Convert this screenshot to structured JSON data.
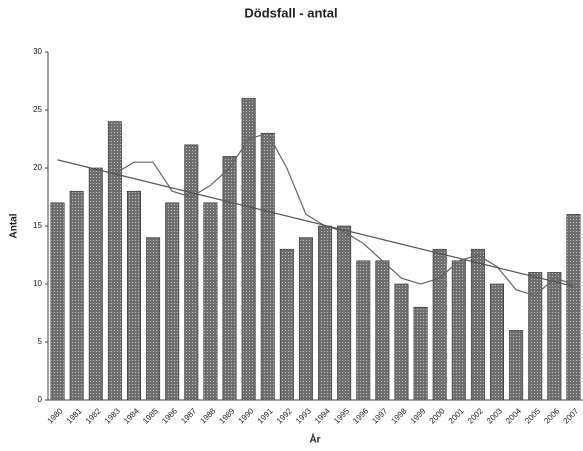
{
  "chart_data": {
    "type": "bar",
    "title": "Dödsfall - antal",
    "x_label": "År",
    "y_label": "Antal",
    "categories": [
      "1980",
      "1981",
      "1982",
      "1983",
      "1984",
      "1985",
      "1986",
      "1987",
      "1988",
      "1989",
      "1990",
      "1991",
      "1992",
      "1993",
      "1994",
      "1995",
      "1996",
      "1997",
      "1998",
      "1999",
      "2000",
      "2001",
      "2002",
      "2003",
      "2004",
      "2005",
      "2006",
      "2007"
    ],
    "values": [
      17,
      18,
      20,
      24,
      18,
      14,
      17,
      22,
      17,
      21,
      26,
      23,
      13,
      14,
      15,
      15,
      12,
      12,
      10,
      8,
      13,
      12,
      13,
      10,
      6,
      11,
      11,
      16
    ],
    "color": "#6e6e6e",
    "moving_average": {
      "color": "#666666",
      "values": [
        null,
        null,
        null,
        19.5,
        20.5,
        20.5,
        18,
        17.5,
        18.5,
        20,
        22.5,
        23,
        20,
        16,
        15,
        14.5,
        13.5,
        12,
        10.5,
        10,
        10.5,
        12,
        12.5,
        11.5,
        9.5,
        9,
        10.5,
        10
      ]
    },
    "trend": {
      "color": "#555555",
      "values": [
        20.7,
        9.8
      ]
    },
    "ylim": [
      0,
      30
    ],
    "yticks": [
      0,
      5,
      10,
      15,
      20,
      25,
      30
    ]
  }
}
